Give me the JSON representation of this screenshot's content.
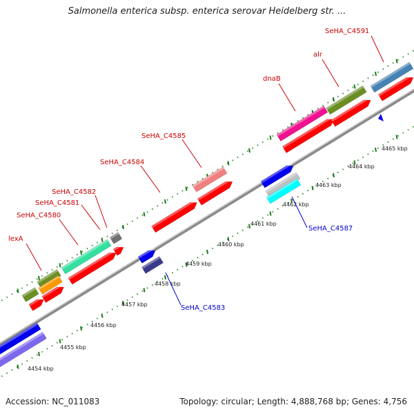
{
  "title": "Salmonella enterica subsp. enterica serovar Heidelberg str. ...",
  "footer": {
    "accession": "Accession: NC_011083",
    "summary": "Topology: circular; Length: 4,888,768 bp; Genes: 4,756"
  },
  "colors": {
    "backbone": "#9a9a9a",
    "backbone_dark": "#6e6e6e",
    "tick_mark": "#2f8f2f",
    "forward_label": "#cc0000",
    "reverse_label": "#0000cc",
    "cds": "#ff0000"
  },
  "scale_labels": [
    "4454 kbp",
    "4455 kbp",
    "4456 kbp",
    "4457 kbp",
    "4458 kbp",
    "4459 kbp",
    "4460 kbp",
    "4461 kbp",
    "4462 kbp",
    "4463 kbp",
    "4464 kbp",
    "4465 kbp"
  ],
  "forward_labels": [
    "lexA",
    "SeHA_C4580",
    "SeHA_C4581",
    "SeHA_C4582",
    "SeHA_C4584",
    "SeHA_C4585",
    "dnaB",
    "alr",
    "SeHA_C4591"
  ],
  "reverse_labels": [
    "SeHA_C4583",
    "SeHA_C4587"
  ],
  "feature_colors": {
    "lexA": "#6b8e23",
    "SeHA_C4580": "#33e0a0",
    "SeHA_C4582": "#707070",
    "SeHA_C4585": "#f08080",
    "dnaB": "#ee1290",
    "alr": "#6b8e23",
    "SeHA_C4591": "#4682b4",
    "SeHA_C4583": "#3a3a8a",
    "SeHA_C4587": "#c0c0c0",
    "rev_blue": "#0000ee",
    "rev_cyan": "#00ffff",
    "rev_purple": "#7b68ee",
    "orange": "#ff9900"
  }
}
